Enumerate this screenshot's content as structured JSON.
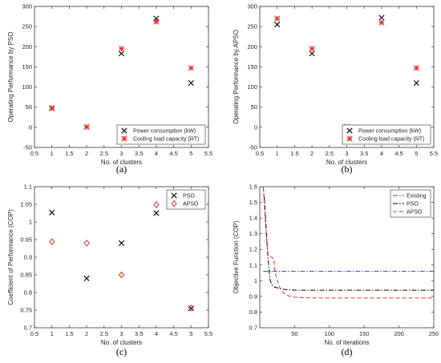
{
  "chart_data": [
    {
      "id": "a",
      "type": "scatter",
      "panel_label": "(a)",
      "xlabel": "No. of clusters",
      "ylabel": "Operating Performance by PSO",
      "xlim": [
        0.5,
        5.5
      ],
      "ylim": [
        -50,
        300
      ],
      "xticks": [
        "0.5",
        "1",
        "1.5",
        "2",
        "2.5",
        "3",
        "3.5",
        "4",
        "4.5",
        "5",
        "5.5"
      ],
      "yticks": [
        "-50",
        "0",
        "50",
        "100",
        "150",
        "200",
        "250",
        "300"
      ],
      "legend_position": "bottom-right",
      "series": [
        {
          "name": "Power consumption (kW)",
          "marker": "x",
          "color": "#000000",
          "x": [
            1,
            2,
            3,
            4,
            5
          ],
          "y": [
            47,
            1,
            183,
            270,
            110
          ]
        },
        {
          "name": "Cooling load capacity (RT)",
          "marker": "asterisk",
          "color": "#e8302a",
          "x": [
            1,
            2,
            3,
            4,
            5
          ],
          "y": [
            48,
            1,
            195,
            262,
            147
          ]
        }
      ]
    },
    {
      "id": "b",
      "type": "scatter",
      "panel_label": "(b)",
      "xlabel": "No. of clusters",
      "ylabel": "Operating Performance by APSO",
      "xlim": [
        0.5,
        5.5
      ],
      "ylim": [
        -50,
        300
      ],
      "xticks": [
        "0.5",
        "1",
        "1.5",
        "2",
        "2.5",
        "3",
        "3.5",
        "4",
        "4.5",
        "5",
        "5.5"
      ],
      "yticks": [
        "-50",
        "0",
        "50",
        "100",
        "150",
        "200",
        "250",
        "300"
      ],
      "legend_position": "bottom-right",
      "series": [
        {
          "name": "Power consumption (kW)",
          "marker": "x",
          "color": "#000000",
          "x": [
            1,
            2,
            3,
            4,
            5
          ],
          "y": [
            255,
            183,
            1,
            272,
            110
          ]
        },
        {
          "name": "Cooling load capacity (RT)",
          "marker": "asterisk",
          "color": "#e8302a",
          "x": [
            1,
            2,
            3,
            4,
            5
          ],
          "y": [
            270,
            195,
            1,
            260,
            147
          ]
        }
      ]
    },
    {
      "id": "c",
      "type": "scatter",
      "panel_label": "(c)",
      "xlabel": "No. of clusters",
      "ylabel": "Coefficient of Performance (COP)",
      "xlim": [
        0.5,
        5.5
      ],
      "ylim": [
        0.7,
        1.1
      ],
      "xticks": [
        "0.5",
        "1",
        "1.5",
        "2",
        "2.5",
        "3",
        "3.5",
        "4",
        "4.5",
        "5",
        "5.5"
      ],
      "yticks": [
        "0.7",
        "0.75",
        "0.8",
        "0.85",
        "0.9",
        "0.95",
        "1",
        "1.05",
        "1.1"
      ],
      "legend_position": "top-right",
      "series": [
        {
          "name": "PSO",
          "marker": "x",
          "color": "#000000",
          "x": [
            1,
            2,
            3,
            4,
            5
          ],
          "y": [
            1.027,
            0.84,
            0.94,
            1.025,
            0.755
          ]
        },
        {
          "name": "APSO",
          "marker": "diamond",
          "color": "#e8302a",
          "x": [
            1,
            2,
            3,
            4,
            5
          ],
          "y": [
            0.944,
            0.94,
            0.85,
            1.049,
            0.756
          ]
        }
      ]
    },
    {
      "id": "d",
      "type": "line",
      "panel_label": "(d)",
      "xlabel": "No. of iterations",
      "ylabel": "Objective Function (COP)",
      "xlim": [
        0,
        250
      ],
      "ylim": [
        0.7,
        1.6
      ],
      "xticks": [
        "50",
        "100",
        "150",
        "200",
        "250"
      ],
      "yticks": [
        "0.7",
        "0.8",
        "0.9",
        "1",
        "1.1",
        "1.2",
        "1.3",
        "1.4",
        "1.5",
        "1.6"
      ],
      "legend_position": "top-right",
      "series": [
        {
          "name": "Existing",
          "dash": "dashdot-blue",
          "color": "#2a3fd0",
          "x": [
            5,
            250
          ],
          "y": [
            1.06,
            1.06
          ]
        },
        {
          "name": "PSO",
          "dash": "dashdot",
          "color": "#000000",
          "x": [
            5,
            7,
            9,
            11,
            13,
            15,
            18,
            21,
            25,
            30,
            35,
            40,
            50,
            60,
            80,
            120,
            250
          ],
          "y": [
            1.6,
            1.5,
            1.35,
            1.2,
            1.08,
            1.0,
            0.97,
            0.96,
            0.955,
            0.95,
            0.945,
            0.942,
            0.94,
            0.94,
            0.94,
            0.94,
            0.94
          ]
        },
        {
          "name": "APSO",
          "dash": "dashed",
          "color": "#e8302a",
          "x": [
            5,
            7,
            9,
            11,
            12,
            14,
            17,
            20,
            22,
            24,
            27,
            30,
            35,
            40,
            50,
            60,
            80,
            120,
            250
          ],
          "y": [
            1.6,
            1.45,
            1.3,
            1.2,
            1.17,
            1.16,
            1.15,
            1.14,
            1.05,
            1.02,
            0.98,
            0.94,
            0.92,
            0.905,
            0.895,
            0.892,
            0.89,
            0.89,
            0.89
          ]
        }
      ]
    }
  ]
}
